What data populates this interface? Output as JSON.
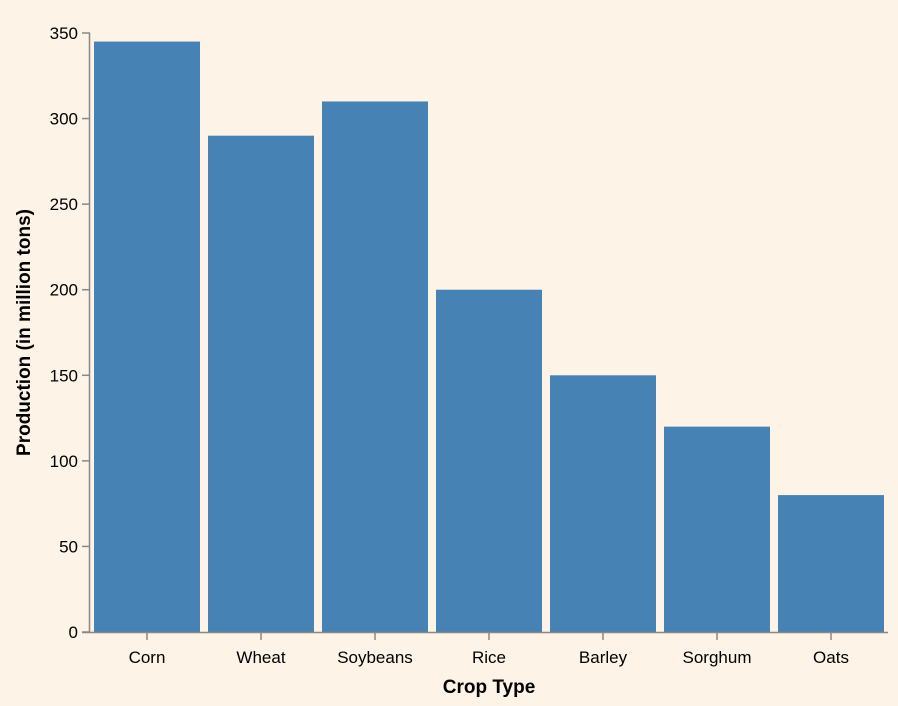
{
  "chart_data": {
    "type": "bar",
    "categories": [
      "Corn",
      "Wheat",
      "Soybeans",
      "Rice",
      "Barley",
      "Sorghum",
      "Oats"
    ],
    "values": [
      345,
      290,
      310,
      200,
      150,
      120,
      80
    ],
    "xlabel": "Crop Type",
    "ylabel": "Production (in million tons)",
    "ylim": [
      0,
      350
    ],
    "yticks": [
      0,
      50,
      100,
      150,
      200,
      250,
      300,
      350
    ],
    "grid": false,
    "colors": {
      "bar": "#4682b4",
      "axis": "#888888",
      "background": "#fdf3e6"
    }
  }
}
